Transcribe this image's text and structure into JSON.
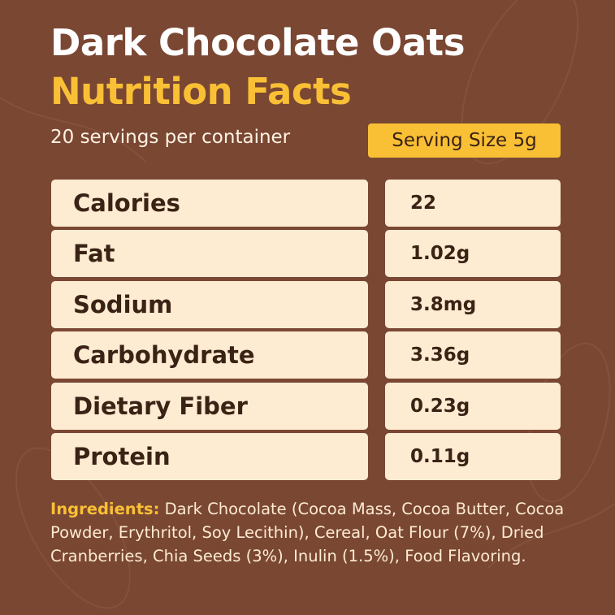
{
  "header": {
    "title": "Dark Chocolate Oats",
    "subtitle": "Nutrition Facts",
    "servings": "20 servings per container",
    "serving_size": "Serving Size 5g"
  },
  "table": {
    "rows": [
      [
        "Calories",
        "22"
      ],
      [
        "Fat",
        "1.02g"
      ],
      [
        "Sodium",
        "3.8mg"
      ],
      [
        "Carbohydrate",
        "3.36g"
      ],
      [
        "Dietary Fiber",
        "0.23g"
      ],
      [
        "Protein",
        "0.11g"
      ]
    ]
  },
  "ingredients": {
    "label": "Ingredients:",
    "text": "Dark Chocolate (Cocoa Mass, Cocoa Butter, Cocoa Powder, Erythritol, Soy Lecithin), Cereal, Oat Flour (7%), Dried Cranberries, Chia Seeds (3%), Inulin (1.5%), Food Flavoring."
  }
}
